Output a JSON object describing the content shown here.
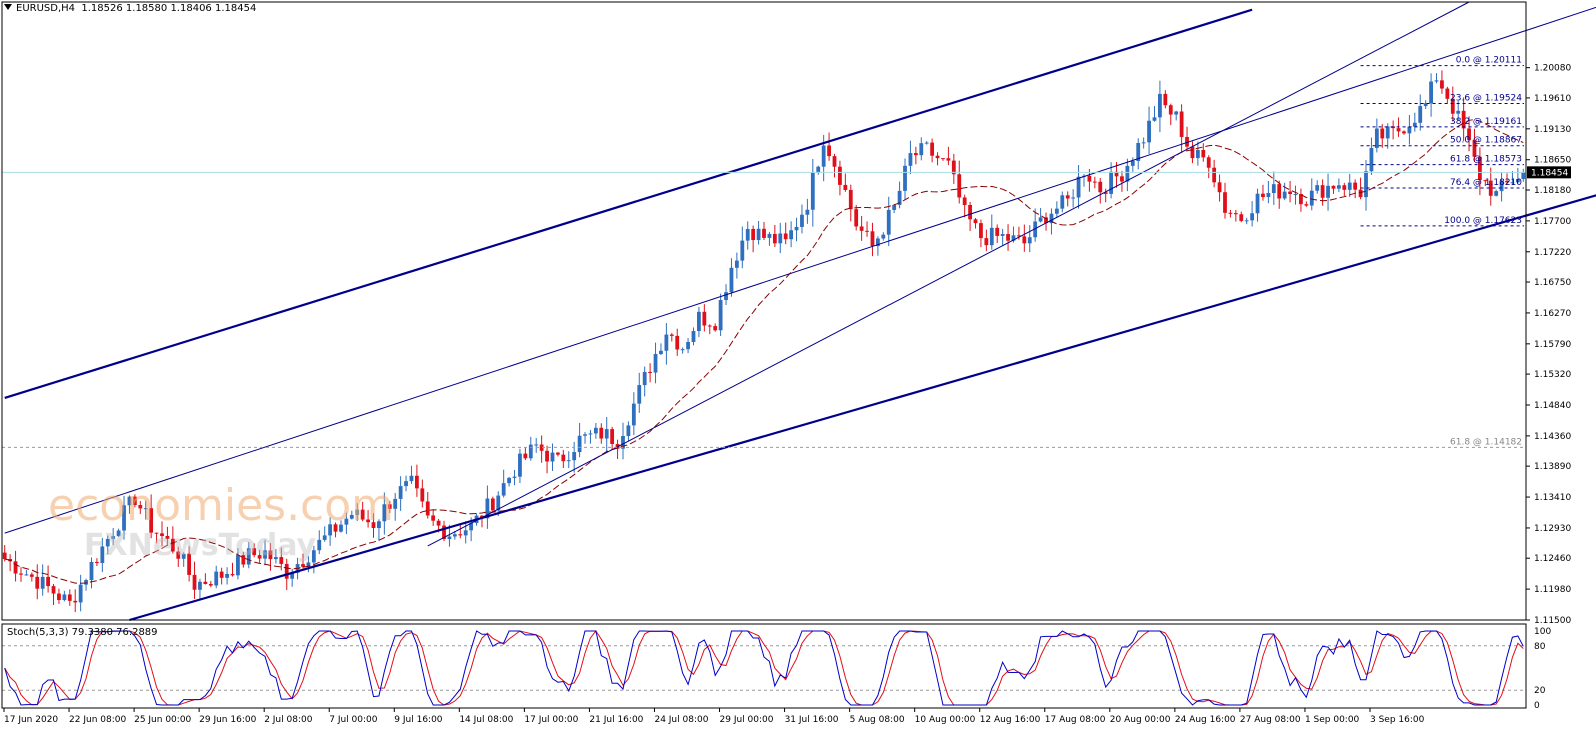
{
  "header": {
    "symbol": "EURUSD,H4",
    "ohlc": "1.18526 1.18580 1.18406 1.18454"
  },
  "watermark": {
    "line1": "economies.com",
    "line2": "FXNewsToday"
  },
  "stoch": {
    "label": "Stoch(5,3,3) 79.3380 76.2889",
    "levels_text": [
      "100",
      "80",
      "20",
      "0"
    ]
  },
  "colors": {
    "bull": "#2e6fbf",
    "bear": "#e0101a",
    "trend": "#00008b",
    "ma": "#8b0000",
    "fib": "#00008b",
    "current_price_line": "#a8dce6",
    "stoch_main": "#0000c8",
    "stoch_signal": "#e0101a"
  },
  "chart_data": {
    "type": "candlestick",
    "symbol": "EURUSD",
    "timeframe": "H4",
    "y_ticks": [
      1.2008,
      1.1961,
      1.1913,
      1.1865,
      1.1818,
      1.177,
      1.1722,
      1.1675,
      1.1627,
      1.1579,
      1.1532,
      1.1484,
      1.1436,
      1.1389,
      1.1341,
      1.1293,
      1.1246,
      1.1198,
      1.115
    ],
    "y_tick_labels": [
      "1.20080",
      "1.19610",
      "1.19130",
      "1.18650",
      "1.18180",
      "1.17700",
      "1.17220",
      "1.16750",
      "1.16270",
      "1.15790",
      "1.15320",
      "1.14840",
      "1.14360",
      "1.13890",
      "1.13410",
      "1.12930",
      "1.12460",
      "1.11980",
      "1.11500"
    ],
    "ylim": [
      1.115,
      1.211
    ],
    "x_tick_labels": [
      "17 Jun 2020",
      "22 Jun 08:00",
      "25 Jun 00:00",
      "29 Jun 16:00",
      "2 Jul 08:00",
      "7 Jul 00:00",
      "9 Jul 16:00",
      "14 Jul 08:00",
      "17 Jul 00:00",
      "21 Jul 16:00",
      "24 Jul 08:00",
      "29 Jul 00:00",
      "31 Jul 16:00",
      "5 Aug 08:00",
      "10 Aug 00:00",
      "12 Aug 16:00",
      "17 Aug 08:00",
      "20 Aug 00:00",
      "24 Aug 16:00",
      "27 Aug 08:00",
      "1 Sep 00:00",
      "3 Sep 16:00"
    ],
    "current_price": 1.18454,
    "current_price_label": "1.18454",
    "close_path": [
      [
        0,
        1.1245
      ],
      [
        8,
        1.12
      ],
      [
        12,
        1.1175
      ],
      [
        16,
        1.1235
      ],
      [
        20,
        1.129
      ],
      [
        24,
        1.134
      ],
      [
        27,
        1.1295
      ],
      [
        32,
        1.1255
      ],
      [
        35,
        1.1205
      ],
      [
        40,
        1.122
      ],
      [
        45,
        1.125
      ],
      [
        48,
        1.1255
      ],
      [
        52,
        1.1225
      ],
      [
        55,
        1.1245
      ],
      [
        60,
        1.1285
      ],
      [
        64,
        1.1315
      ],
      [
        68,
        1.13
      ],
      [
        72,
        1.1345
      ],
      [
        75,
        1.136
      ],
      [
        78,
        1.1305
      ],
      [
        82,
        1.1285
      ],
      [
        86,
        1.1295
      ],
      [
        90,
        1.1335
      ],
      [
        94,
        1.1385
      ],
      [
        98,
        1.142
      ],
      [
        102,
        1.1395
      ],
      [
        106,
        1.143
      ],
      [
        110,
        1.144
      ],
      [
        113,
        1.143
      ],
      [
        116,
        1.1485
      ],
      [
        119,
        1.1545
      ],
      [
        122,
        1.16
      ],
      [
        125,
        1.1575
      ],
      [
        128,
        1.162
      ],
      [
        131,
        1.1615
      ],
      [
        134,
        1.17
      ],
      [
        137,
        1.176
      ],
      [
        140,
        1.1745
      ],
      [
        144,
        1.1735
      ],
      [
        148,
        1.18
      ],
      [
        151,
        1.19
      ],
      [
        154,
        1.184
      ],
      [
        157,
        1.1765
      ],
      [
        160,
        1.173
      ],
      [
        164,
        1.179
      ],
      [
        167,
        1.187
      ],
      [
        170,
        1.188
      ],
      [
        174,
        1.1855
      ],
      [
        177,
        1.178
      ],
      [
        180,
        1.1745
      ],
      [
        184,
        1.1745
      ],
      [
        188,
        1.1735
      ],
      [
        192,
        1.178
      ],
      [
        196,
        1.18
      ],
      [
        199,
        1.185
      ],
      [
        202,
        1.182
      ],
      [
        206,
        1.1845
      ],
      [
        210,
        1.19
      ],
      [
        213,
        1.1955
      ],
      [
        216,
        1.193
      ],
      [
        219,
        1.187
      ],
      [
        222,
        1.1865
      ],
      [
        225,
        1.179
      ],
      [
        228,
        1.1775
      ],
      [
        231,
        1.1805
      ],
      [
        234,
        1.1815
      ],
      [
        237,
        1.182
      ],
      [
        240,
        1.1805
      ],
      [
        243,
        1.182
      ],
      [
        246,
        1.183
      ],
      [
        250,
        1.1815
      ],
      [
        253,
        1.19
      ],
      [
        256,
        1.1905
      ],
      [
        259,
        1.1925
      ],
      [
        262,
        1.195
      ],
      [
        264,
        1.1995
      ],
      [
        266,
        1.1965
      ],
      [
        269,
        1.191
      ],
      [
        272,
        1.184
      ],
      [
        275,
        1.181
      ],
      [
        278,
        1.1835
      ],
      [
        280,
        1.1845
      ]
    ],
    "ma_type": "moving average (dashed)",
    "trendlines_price": [
      {
        "x": [
          0,
          230
        ],
        "y": [
          1.1495,
          1.2098
        ]
      },
      {
        "x": [
          23,
          312
        ],
        "y": [
          1.115,
          1.1855
        ]
      },
      {
        "x": [
          0,
          300
        ],
        "y": [
          1.1285,
          1.212
        ]
      },
      {
        "x": [
          78,
          270
        ],
        "y": [
          1.1265,
          1.211
        ]
      }
    ],
    "fibonacci": {
      "high": 1.20111,
      "low": 1.17623,
      "levels": [
        {
          "label": "0.0 @ 1.20111",
          "value": 1.20111
        },
        {
          "label": "23.6 @ 1.19524",
          "value": 1.19524
        },
        {
          "label": "38.2 @ 1.19161",
          "value": 1.19161
        },
        {
          "label": "50.0 @ 1.18867",
          "value": 1.18867
        },
        {
          "label": "61.8 @ 1.18573",
          "value": 1.18573
        },
        {
          "label": "76.4 @ 1.18210",
          "value": 1.1821
        },
        {
          "label": "100.0 @ 1.17623",
          "value": 1.17623
        }
      ],
      "extra_level": {
        "label": "61.8 @ 1.14182",
        "value": 1.14182
      }
    },
    "stochastic": {
      "params": "(5,3,3)",
      "main_last": 79.338,
      "signal_last": 76.2889,
      "levels": [
        20,
        80
      ],
      "ylim": [
        0,
        100
      ]
    }
  }
}
